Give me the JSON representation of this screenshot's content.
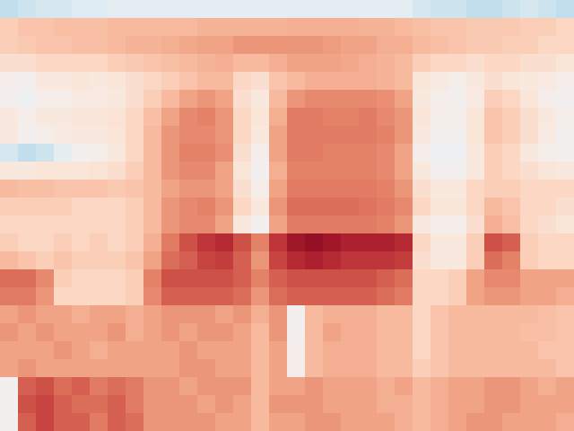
{
  "chart_data": {
    "type": "heatmap",
    "tick_labels": false,
    "zlim": [
      0,
      1
    ],
    "values": [
      [
        0.38,
        0.4,
        0.42,
        0.42,
        0.44,
        0.44,
        0.45,
        0.45,
        0.45,
        0.45,
        0.45,
        0.45,
        0.45,
        0.45,
        0.45,
        0.45,
        0.45,
        0.45,
        0.45,
        0.45,
        0.45,
        0.45,
        0.45,
        0.42,
        0.4,
        0.4,
        0.38,
        0.38,
        0.4,
        0.42,
        0.4,
        0.38
      ],
      [
        0.62,
        0.64,
        0.64,
        0.65,
        0.65,
        0.65,
        0.66,
        0.66,
        0.66,
        0.66,
        0.66,
        0.67,
        0.67,
        0.67,
        0.67,
        0.67,
        0.68,
        0.68,
        0.68,
        0.68,
        0.67,
        0.67,
        0.66,
        0.65,
        0.64,
        0.64,
        0.63,
        0.63,
        0.63,
        0.62,
        0.62,
        0.6
      ],
      [
        0.62,
        0.63,
        0.64,
        0.64,
        0.65,
        0.65,
        0.66,
        0.67,
        0.67,
        0.68,
        0.69,
        0.7,
        0.7,
        0.72,
        0.72,
        0.72,
        0.72,
        0.72,
        0.71,
        0.7,
        0.7,
        0.68,
        0.68,
        0.66,
        0.65,
        0.64,
        0.63,
        0.63,
        0.62,
        0.62,
        0.6,
        0.6
      ],
      [
        0.58,
        0.58,
        0.6,
        0.6,
        0.6,
        0.6,
        0.62,
        0.63,
        0.64,
        0.65,
        0.66,
        0.67,
        0.68,
        0.66,
        0.66,
        0.68,
        0.7,
        0.7,
        0.7,
        0.69,
        0.68,
        0.67,
        0.66,
        0.62,
        0.6,
        0.6,
        0.58,
        0.6,
        0.6,
        0.58,
        0.58,
        0.56
      ],
      [
        0.52,
        0.5,
        0.55,
        0.55,
        0.56,
        0.55,
        0.56,
        0.58,
        0.6,
        0.62,
        0.64,
        0.66,
        0.66,
        0.6,
        0.58,
        0.64,
        0.66,
        0.68,
        0.68,
        0.68,
        0.68,
        0.67,
        0.66,
        0.56,
        0.54,
        0.52,
        0.55,
        0.58,
        0.56,
        0.55,
        0.54,
        0.52
      ],
      [
        0.5,
        0.48,
        0.52,
        0.52,
        0.54,
        0.54,
        0.55,
        0.58,
        0.62,
        0.66,
        0.7,
        0.72,
        0.7,
        0.58,
        0.55,
        0.66,
        0.72,
        0.74,
        0.74,
        0.74,
        0.74,
        0.73,
        0.7,
        0.55,
        0.52,
        0.5,
        0.54,
        0.62,
        0.6,
        0.56,
        0.52,
        0.5
      ],
      [
        0.55,
        0.52,
        0.55,
        0.55,
        0.56,
        0.56,
        0.57,
        0.6,
        0.65,
        0.7,
        0.74,
        0.75,
        0.72,
        0.6,
        0.56,
        0.68,
        0.76,
        0.76,
        0.75,
        0.75,
        0.76,
        0.74,
        0.72,
        0.56,
        0.52,
        0.52,
        0.56,
        0.64,
        0.62,
        0.58,
        0.55,
        0.52
      ],
      [
        0.55,
        0.5,
        0.52,
        0.54,
        0.55,
        0.55,
        0.56,
        0.6,
        0.66,
        0.72,
        0.74,
        0.74,
        0.72,
        0.6,
        0.55,
        0.7,
        0.76,
        0.76,
        0.76,
        0.76,
        0.76,
        0.75,
        0.72,
        0.55,
        0.5,
        0.5,
        0.56,
        0.64,
        0.62,
        0.58,
        0.54,
        0.5
      ],
      [
        0.42,
        0.38,
        0.4,
        0.46,
        0.5,
        0.52,
        0.55,
        0.6,
        0.66,
        0.72,
        0.75,
        0.75,
        0.73,
        0.58,
        0.52,
        0.7,
        0.76,
        0.76,
        0.75,
        0.75,
        0.75,
        0.74,
        0.7,
        0.52,
        0.48,
        0.48,
        0.55,
        0.62,
        0.6,
        0.55,
        0.52,
        0.5
      ],
      [
        0.55,
        0.55,
        0.56,
        0.56,
        0.56,
        0.57,
        0.58,
        0.62,
        0.66,
        0.72,
        0.74,
        0.74,
        0.7,
        0.56,
        0.5,
        0.68,
        0.75,
        0.75,
        0.75,
        0.75,
        0.75,
        0.74,
        0.7,
        0.55,
        0.5,
        0.5,
        0.55,
        0.62,
        0.6,
        0.58,
        0.56,
        0.55
      ],
      [
        0.66,
        0.65,
        0.65,
        0.64,
        0.64,
        0.64,
        0.63,
        0.64,
        0.66,
        0.7,
        0.72,
        0.72,
        0.7,
        0.58,
        0.52,
        0.7,
        0.76,
        0.76,
        0.76,
        0.76,
        0.76,
        0.75,
        0.72,
        0.58,
        0.55,
        0.55,
        0.6,
        0.62,
        0.62,
        0.6,
        0.6,
        0.6
      ],
      [
        0.62,
        0.62,
        0.62,
        0.62,
        0.6,
        0.6,
        0.6,
        0.62,
        0.66,
        0.72,
        0.74,
        0.75,
        0.72,
        0.6,
        0.55,
        0.72,
        0.78,
        0.78,
        0.78,
        0.78,
        0.77,
        0.76,
        0.74,
        0.6,
        0.56,
        0.56,
        0.6,
        0.66,
        0.64,
        0.6,
        0.6,
        0.58
      ],
      [
        0.6,
        0.6,
        0.6,
        0.6,
        0.6,
        0.6,
        0.6,
        0.62,
        0.66,
        0.72,
        0.74,
        0.74,
        0.7,
        0.55,
        0.5,
        0.7,
        0.76,
        0.76,
        0.76,
        0.76,
        0.76,
        0.75,
        0.72,
        0.55,
        0.52,
        0.52,
        0.58,
        0.68,
        0.65,
        0.6,
        0.58,
        0.56
      ],
      [
        0.62,
        0.6,
        0.6,
        0.62,
        0.6,
        0.62,
        0.6,
        0.62,
        0.68,
        0.76,
        0.82,
        0.86,
        0.88,
        0.82,
        0.75,
        0.86,
        0.92,
        0.94,
        0.92,
        0.9,
        0.9,
        0.9,
        0.88,
        0.6,
        0.55,
        0.55,
        0.62,
        0.82,
        0.8,
        0.62,
        0.6,
        0.6
      ],
      [
        0.66,
        0.64,
        0.62,
        0.64,
        0.62,
        0.62,
        0.62,
        0.64,
        0.7,
        0.78,
        0.8,
        0.84,
        0.85,
        0.8,
        0.72,
        0.84,
        0.88,
        0.9,
        0.88,
        0.86,
        0.86,
        0.86,
        0.85,
        0.58,
        0.55,
        0.55,
        0.62,
        0.78,
        0.75,
        0.62,
        0.6,
        0.6
      ],
      [
        0.78,
        0.78,
        0.74,
        0.62,
        0.6,
        0.6,
        0.6,
        0.62,
        0.75,
        0.82,
        0.82,
        0.82,
        0.82,
        0.8,
        0.75,
        0.8,
        0.82,
        0.82,
        0.82,
        0.82,
        0.82,
        0.8,
        0.78,
        0.6,
        0.6,
        0.62,
        0.7,
        0.74,
        0.74,
        0.7,
        0.7,
        0.7
      ],
      [
        0.76,
        0.76,
        0.72,
        0.6,
        0.6,
        0.6,
        0.6,
        0.62,
        0.74,
        0.8,
        0.8,
        0.8,
        0.8,
        0.78,
        0.72,
        0.78,
        0.8,
        0.8,
        0.8,
        0.8,
        0.8,
        0.78,
        0.76,
        0.6,
        0.6,
        0.62,
        0.7,
        0.72,
        0.72,
        0.7,
        0.7,
        0.68
      ],
      [
        0.7,
        0.72,
        0.7,
        0.7,
        0.68,
        0.7,
        0.7,
        0.68,
        0.7,
        0.72,
        0.72,
        0.72,
        0.7,
        0.72,
        0.68,
        0.72,
        0.5,
        0.66,
        0.68,
        0.68,
        0.68,
        0.66,
        0.66,
        0.6,
        0.64,
        0.66,
        0.66,
        0.66,
        0.66,
        0.66,
        0.65,
        0.64
      ],
      [
        0.72,
        0.7,
        0.72,
        0.7,
        0.7,
        0.7,
        0.72,
        0.68,
        0.7,
        0.72,
        0.7,
        0.72,
        0.72,
        0.7,
        0.66,
        0.72,
        0.5,
        0.66,
        0.7,
        0.68,
        0.68,
        0.66,
        0.66,
        0.6,
        0.64,
        0.66,
        0.66,
        0.66,
        0.66,
        0.65,
        0.65,
        0.64
      ],
      [
        0.7,
        0.7,
        0.7,
        0.72,
        0.7,
        0.68,
        0.7,
        0.7,
        0.7,
        0.7,
        0.72,
        0.7,
        0.7,
        0.7,
        0.66,
        0.7,
        0.52,
        0.66,
        0.68,
        0.68,
        0.68,
        0.66,
        0.66,
        0.6,
        0.64,
        0.66,
        0.66,
        0.66,
        0.66,
        0.66,
        0.64,
        0.64
      ],
      [
        0.7,
        0.72,
        0.7,
        0.7,
        0.7,
        0.7,
        0.7,
        0.7,
        0.7,
        0.7,
        0.72,
        0.72,
        0.7,
        0.7,
        0.66,
        0.7,
        0.52,
        0.66,
        0.68,
        0.68,
        0.68,
        0.66,
        0.66,
        0.62,
        0.64,
        0.66,
        0.66,
        0.66,
        0.66,
        0.66,
        0.66,
        0.64
      ],
      [
        0.5,
        0.8,
        0.82,
        0.78,
        0.8,
        0.76,
        0.78,
        0.76,
        0.72,
        0.72,
        0.7,
        0.72,
        0.72,
        0.72,
        0.66,
        0.7,
        0.7,
        0.72,
        0.7,
        0.7,
        0.7,
        0.68,
        0.7,
        0.66,
        0.68,
        0.7,
        0.7,
        0.72,
        0.72,
        0.7,
        0.68,
        0.7
      ],
      [
        0.5,
        0.82,
        0.84,
        0.8,
        0.78,
        0.78,
        0.8,
        0.76,
        0.72,
        0.72,
        0.72,
        0.7,
        0.72,
        0.7,
        0.66,
        0.72,
        0.72,
        0.72,
        0.7,
        0.7,
        0.7,
        0.68,
        0.68,
        0.66,
        0.68,
        0.7,
        0.7,
        0.72,
        0.72,
        0.7,
        0.7,
        0.7
      ],
      [
        0.5,
        0.8,
        0.84,
        0.8,
        0.8,
        0.76,
        0.8,
        0.78,
        0.72,
        0.72,
        0.72,
        0.72,
        0.7,
        0.7,
        0.66,
        0.7,
        0.7,
        0.72,
        0.72,
        0.7,
        0.7,
        0.7,
        0.68,
        0.66,
        0.68,
        0.7,
        0.72,
        0.72,
        0.7,
        0.7,
        0.7,
        0.68
      ]
    ]
  }
}
